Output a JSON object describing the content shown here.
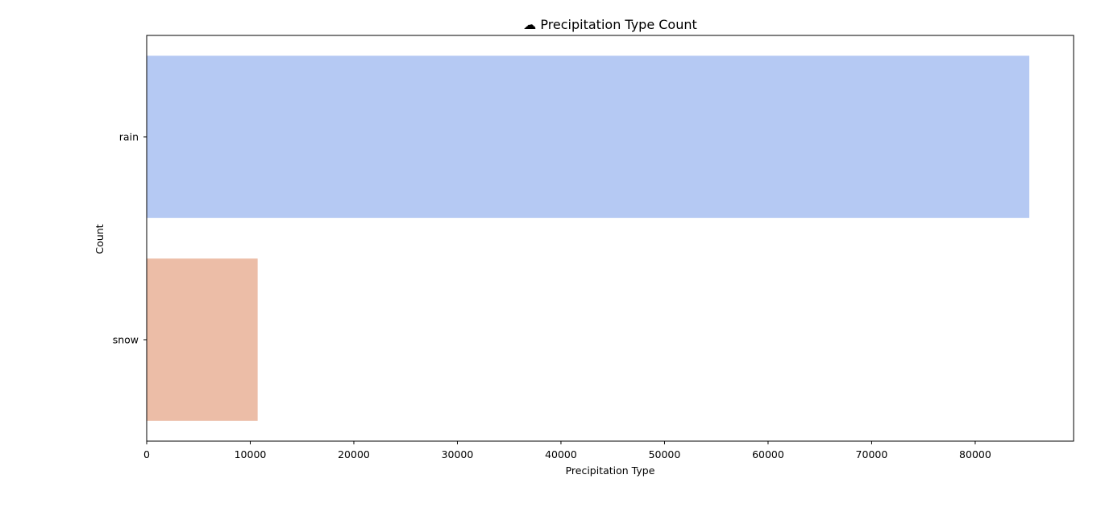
{
  "chart_data": {
    "type": "bar",
    "orientation": "horizontal",
    "title": "☁ Precipitation Type Count",
    "xlabel": "Precipitation Type",
    "ylabel": "Count",
    "categories": [
      "rain",
      "snow"
    ],
    "values": [
      85224,
      10712
    ],
    "colors": [
      "#b5c9f3",
      "#ecbda7"
    ],
    "xlim": [
      0,
      89500
    ],
    "xticks": [
      0,
      10000,
      20000,
      30000,
      40000,
      50000,
      60000,
      70000,
      80000
    ],
    "grid": false,
    "legend": "none"
  }
}
